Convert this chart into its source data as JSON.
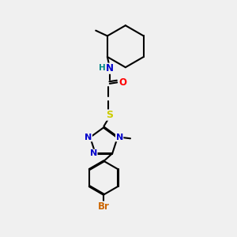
{
  "background_color": "#f0f0f0",
  "bond_color": "#000000",
  "colors": {
    "N": "#0000cc",
    "O": "#ff0000",
    "S": "#cccc00",
    "Br": "#cc6600",
    "C": "#000000",
    "H": "#008888"
  },
  "figsize": [
    3.0,
    3.0
  ],
  "dpi": 100,
  "xlim": [
    0,
    10
  ],
  "ylim": [
    0,
    10
  ]
}
